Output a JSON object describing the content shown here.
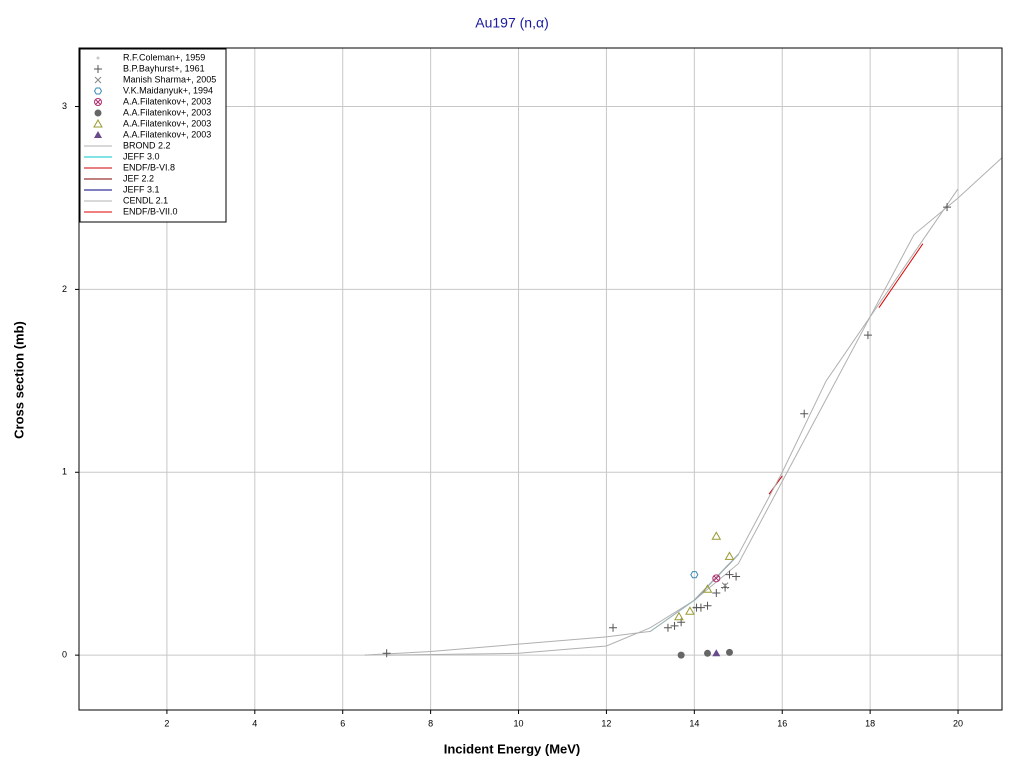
{
  "chart_data": {
    "type": "scatter",
    "title": "Au197 (n,α)",
    "x_label": "Incident Energy (MeV)",
    "y_label": "Cross section (mb)",
    "xlim": [
      0,
      21
    ],
    "ylim": [
      -0.3,
      3.32
    ],
    "xticks": [
      2,
      4,
      6,
      8,
      10,
      12,
      14,
      16,
      18,
      20
    ],
    "yticks": [
      0,
      1,
      2,
      3
    ],
    "grid": true,
    "legend": "upper left",
    "series": [
      {
        "name": "R.F.Coleman+, 1959",
        "color": "#c8c8c8",
        "marker": "dot",
        "x": [
          14.0
        ],
        "values": [
          0.26
        ]
      },
      {
        "name": "B.P.Bayhurst+, 1961",
        "color": "#555555",
        "marker": "plus",
        "x": [
          7.0,
          12.15,
          13.4,
          13.55,
          13.7,
          14.05,
          14.15,
          14.3,
          14.5,
          14.7,
          14.8,
          14.95,
          16.5,
          17.95,
          19.75
        ],
        "values": [
          0.01,
          0.15,
          0.15,
          0.16,
          0.18,
          0.26,
          0.26,
          0.27,
          0.34,
          0.37,
          0.44,
          0.43,
          1.32,
          1.75,
          2.45
        ]
      },
      {
        "name": "Manish Sharma+, 2005",
        "color": "#888888",
        "marker": "x",
        "x": [
          14.7
        ],
        "values": [
          0.38
        ]
      },
      {
        "name": "V.K.Maidanyuk+, 1994",
        "color": "#3a8ab8",
        "marker": "hexagon",
        "x": [
          14.0
        ],
        "values": [
          0.44
        ]
      },
      {
        "name": "A.A.Filatenkov+, 2003",
        "color": "#b03070",
        "marker": "crossed-circle",
        "x": [
          14.5
        ],
        "values": [
          0.42
        ]
      },
      {
        "name": "A.A.Filatenkov+, 2003",
        "color": "#666666",
        "marker": "circle",
        "x": [
          13.7,
          14.3,
          14.8
        ],
        "values": [
          0.0,
          0.01,
          0.015
        ]
      },
      {
        "name": "A.A.Filatenkov+, 2003",
        "color": "#9a9a30",
        "marker": "triangle",
        "x": [
          13.65,
          13.9,
          14.3,
          14.5,
          14.8
        ],
        "values": [
          0.21,
          0.24,
          0.36,
          0.65,
          0.54
        ]
      },
      {
        "name": "A.A.Filatenkov+, 2003",
        "color": "#6a4a8a",
        "marker": "filled-triangle",
        "x": [
          14.5
        ],
        "values": [
          0.01
        ]
      },
      {
        "name": "BROND 2.2",
        "color": "#b0b0b0",
        "marker": "line",
        "x": [
          6.5,
          8,
          10,
          12,
          13,
          14,
          15,
          16,
          17,
          18,
          19,
          20
        ],
        "values": [
          0,
          0.02,
          0.06,
          0.1,
          0.13,
          0.3,
          0.55,
          1.0,
          1.5,
          1.85,
          2.2,
          2.55
        ]
      },
      {
        "name": "JEFF 3.0",
        "color": "#00c8c8",
        "marker": "line",
        "x": [
          13,
          14,
          15
        ],
        "values": [
          0.13,
          0.3,
          0.55
        ]
      },
      {
        "name": "ENDF/B-VI.8",
        "color": "#cc0000",
        "marker": "line",
        "x": [
          15.7,
          16.0
        ],
        "values": [
          0.88,
          0.98
        ]
      },
      {
        "name": "JEF 2.2",
        "color": "#800000",
        "marker": "line",
        "x": [
          14,
          15
        ],
        "values": [
          0.3,
          0.55
        ]
      },
      {
        "name": "JEFF 3.1",
        "color": "#000080",
        "marker": "line",
        "x": [
          14,
          15
        ],
        "values": [
          0.3,
          0.55
        ]
      },
      {
        "name": "CENDL 2.1",
        "color": "#b0b0b0",
        "marker": "line",
        "x": [
          7,
          10,
          12,
          13,
          14,
          15,
          16,
          17,
          18,
          19,
          20,
          21
        ],
        "values": [
          0,
          0.01,
          0.05,
          0.15,
          0.3,
          0.5,
          0.95,
          1.4,
          1.85,
          2.3,
          2.5,
          2.72
        ]
      },
      {
        "name": "ENDF/B-VII.0",
        "color": "#dd0000",
        "marker": "line",
        "x": [
          18.2,
          19.2
        ],
        "values": [
          1.9,
          2.25
        ]
      }
    ]
  }
}
